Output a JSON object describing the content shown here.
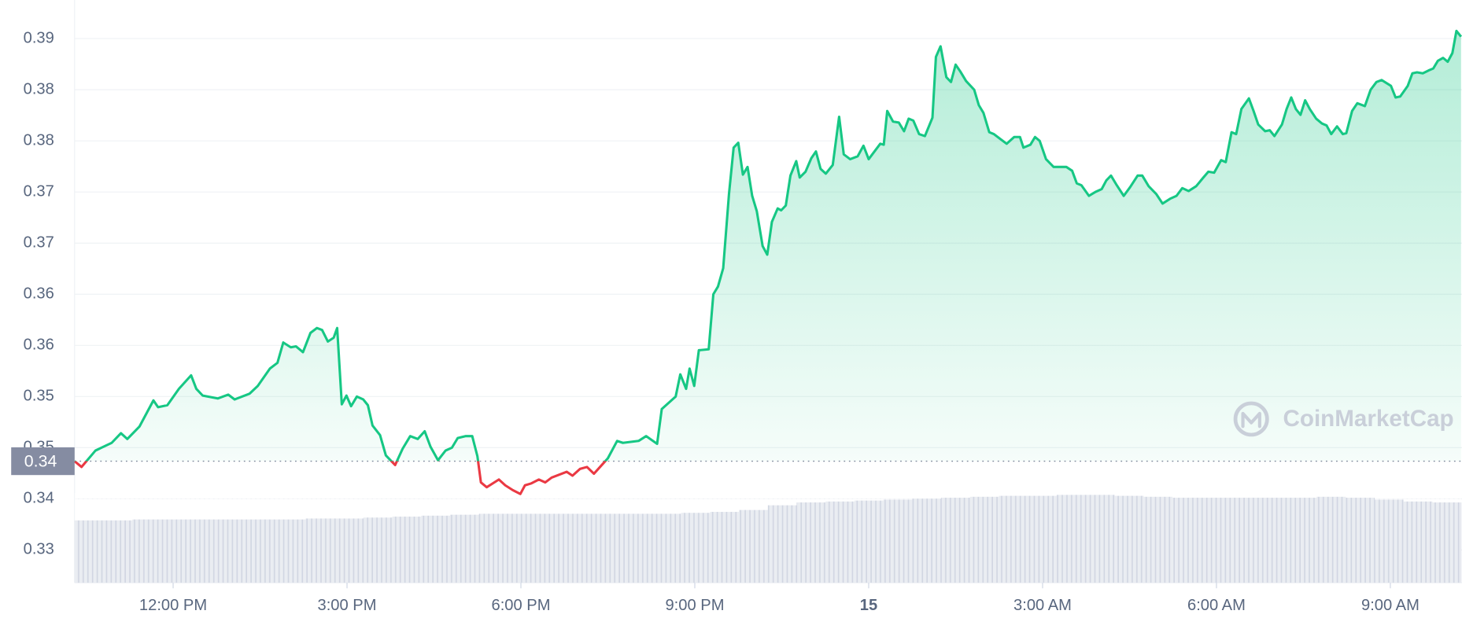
{
  "chart_data": {
    "type": "line",
    "color": "#16c784",
    "down_color": "#ea3943",
    "reference": {
      "value": 0.3437,
      "label": "0.34"
    },
    "watermark": "CoinMarketCap",
    "grid": true,
    "xlim": [
      10.3,
      34.22
    ],
    "xticks": [
      {
        "value": 12,
        "label": "12:00 PM"
      },
      {
        "value": 15,
        "label": "3:00 PM"
      },
      {
        "value": 18,
        "label": "6:00 PM"
      },
      {
        "value": 21,
        "label": "9:00 PM"
      },
      {
        "value": 24,
        "label": "15",
        "bold": true
      },
      {
        "value": 27,
        "label": "3:00 AM"
      },
      {
        "value": 30,
        "label": "6:00 AM"
      },
      {
        "value": 33,
        "label": "9:00 AM"
      }
    ],
    "ylim": [
      0.3311,
      0.3915
    ],
    "yticks": [
      {
        "value": 0.3875,
        "label": "0.39"
      },
      {
        "value": 0.3822,
        "label": "0.38"
      },
      {
        "value": 0.3769,
        "label": "0.38"
      },
      {
        "value": 0.3716,
        "label": "0.37"
      },
      {
        "value": 0.3663,
        "label": "0.37"
      },
      {
        "value": 0.361,
        "label": "0.36"
      },
      {
        "value": 0.3557,
        "label": "0.36"
      },
      {
        "value": 0.3504,
        "label": "0.35"
      },
      {
        "value": 0.3451,
        "label": "0.35"
      },
      {
        "value": 0.3398,
        "label": "0.34"
      },
      {
        "value": 0.3345,
        "label": "0.33"
      }
    ],
    "x": [
      10.3,
      10.42,
      10.66,
      10.94,
      11.1,
      11.21,
      11.42,
      11.66,
      11.74,
      11.9,
      12.1,
      12.31,
      12.4,
      12.51,
      12.77,
      12.95,
      13.06,
      13.32,
      13.46,
      13.67,
      13.8,
      13.9,
      14.03,
      14.12,
      14.24,
      14.37,
      14.48,
      14.57,
      14.67,
      14.77,
      14.83,
      14.91,
      14.99,
      15.07,
      15.17,
      15.28,
      15.36,
      15.44,
      15.57,
      15.67,
      15.83,
      15.96,
      16.09,
      16.22,
      16.34,
      16.44,
      16.57,
      16.7,
      16.81,
      16.91,
      17.05,
      17.16,
      17.25,
      17.31,
      17.41,
      17.62,
      17.73,
      17.86,
      17.99,
      18.07,
      18.18,
      18.31,
      18.42,
      18.53,
      18.79,
      18.89,
      19.02,
      19.14,
      19.26,
      19.38,
      19.5,
      19.66,
      19.76,
      20.03,
      20.16,
      20.35,
      20.43,
      20.67,
      20.75,
      20.85,
      20.91,
      20.99,
      21.07,
      21.24,
      21.32,
      21.4,
      21.49,
      21.59,
      21.67,
      21.75,
      21.83,
      21.91,
      21.99,
      22.07,
      22.17,
      22.25,
      22.33,
      22.43,
      22.49,
      22.57,
      22.65,
      22.75,
      22.81,
      22.91,
      23.01,
      23.09,
      23.17,
      23.26,
      23.38,
      23.49,
      23.57,
      23.68,
      23.81,
      23.91,
      24.0,
      24.2,
      24.26,
      24.32,
      24.42,
      24.52,
      24.61,
      24.69,
      24.77,
      24.87,
      24.97,
      25.1,
      25.16,
      25.24,
      25.34,
      25.42,
      25.5,
      25.58,
      25.68,
      25.82,
      25.9,
      25.98,
      26.08,
      26.16,
      26.38,
      26.51,
      26.61,
      26.67,
      26.79,
      26.87,
      26.95,
      27.06,
      27.19,
      27.41,
      27.51,
      27.59,
      27.67,
      27.8,
      27.91,
      28.02,
      28.1,
      28.18,
      28.28,
      28.4,
      28.51,
      28.64,
      28.72,
      28.83,
      28.96,
      29.07,
      29.2,
      29.31,
      29.41,
      29.52,
      29.65,
      29.76,
      29.86,
      29.96,
      30.08,
      30.16,
      30.26,
      30.34,
      30.43,
      30.56,
      30.64,
      30.72,
      30.84,
      30.92,
      31.0,
      31.13,
      31.21,
      31.29,
      31.37,
      31.45,
      31.53,
      31.61,
      31.72,
      31.82,
      31.9,
      31.98,
      32.08,
      32.18,
      32.24,
      32.34,
      32.43,
      32.56,
      32.66,
      32.76,
      32.85,
      33.01,
      33.09,
      33.17,
      33.3,
      33.38,
      33.46,
      33.56,
      33.66,
      33.74,
      33.82,
      33.91,
      33.99,
      34.07,
      34.14,
      34.22
    ],
    "values": [
      0.3437,
      0.3431,
      0.3448,
      0.3456,
      0.3466,
      0.346,
      0.3473,
      0.35,
      0.3493,
      0.3495,
      0.3512,
      0.3526,
      0.3512,
      0.3505,
      0.3502,
      0.3506,
      0.3501,
      0.3507,
      0.3515,
      0.3533,
      0.3539,
      0.356,
      0.3555,
      0.3556,
      0.355,
      0.357,
      0.3575,
      0.3573,
      0.3561,
      0.3565,
      0.3575,
      0.3496,
      0.3505,
      0.3494,
      0.3504,
      0.3501,
      0.3495,
      0.3474,
      0.3464,
      0.3443,
      0.3433,
      0.345,
      0.3463,
      0.346,
      0.3468,
      0.3452,
      0.3438,
      0.3448,
      0.3451,
      0.3461,
      0.3463,
      0.3463,
      0.3442,
      0.3415,
      0.341,
      0.3418,
      0.3412,
      0.3407,
      0.3403,
      0.3412,
      0.3414,
      0.3418,
      0.3415,
      0.342,
      0.3426,
      0.3422,
      0.3429,
      0.3431,
      0.3424,
      0.3432,
      0.344,
      0.3458,
      0.3456,
      0.3458,
      0.3463,
      0.3455,
      0.3491,
      0.3504,
      0.3527,
      0.3512,
      0.3533,
      0.3515,
      0.3552,
      0.3553,
      0.361,
      0.3618,
      0.3637,
      0.3714,
      0.3762,
      0.3767,
      0.3734,
      0.3742,
      0.3712,
      0.3696,
      0.366,
      0.3651,
      0.3685,
      0.3699,
      0.3697,
      0.3702,
      0.3733,
      0.3748,
      0.3731,
      0.3737,
      0.3751,
      0.3758,
      0.374,
      0.3735,
      0.3744,
      0.3794,
      0.3755,
      0.375,
      0.3753,
      0.3764,
      0.375,
      0.3766,
      0.3765,
      0.38,
      0.3789,
      0.3788,
      0.3779,
      0.3792,
      0.379,
      0.3776,
      0.3774,
      0.3793,
      0.3856,
      0.3867,
      0.3835,
      0.383,
      0.3848,
      0.3841,
      0.3831,
      0.3822,
      0.3806,
      0.3798,
      0.3778,
      0.3776,
      0.3766,
      0.3773,
      0.3773,
      0.3762,
      0.3765,
      0.3773,
      0.3769,
      0.375,
      0.3742,
      0.3742,
      0.3738,
      0.3725,
      0.3723,
      0.3712,
      0.3716,
      0.3719,
      0.3728,
      0.3733,
      0.3723,
      0.3712,
      0.3721,
      0.3733,
      0.3733,
      0.3722,
      0.3714,
      0.3704,
      0.3709,
      0.3712,
      0.372,
      0.3717,
      0.3722,
      0.373,
      0.3737,
      0.3736,
      0.3749,
      0.3747,
      0.3778,
      0.3776,
      0.3802,
      0.3813,
      0.38,
      0.3786,
      0.3779,
      0.378,
      0.3774,
      0.3786,
      0.3802,
      0.3814,
      0.3802,
      0.3796,
      0.3811,
      0.3802,
      0.3792,
      0.3787,
      0.3785,
      0.3776,
      0.3784,
      0.3776,
      0.3777,
      0.38,
      0.3808,
      0.3805,
      0.3822,
      0.383,
      0.3832,
      0.3826,
      0.3814,
      0.3815,
      0.3826,
      0.3839,
      0.384,
      0.3839,
      0.3842,
      0.3844,
      0.3852,
      0.3855,
      0.3851,
      0.386,
      0.3883,
      0.3877
    ],
    "volume": {
      "color": "#d1d6e2",
      "values": [
        66,
        66,
        67,
        67,
        67,
        67,
        67,
        67,
        68,
        68,
        69,
        70,
        71,
        72,
        73,
        73,
        73,
        73,
        73,
        73,
        73,
        74,
        75,
        77,
        82,
        85,
        86,
        87,
        88,
        89,
        90,
        91,
        92,
        92,
        93,
        93,
        92,
        91,
        90,
        90,
        90,
        90,
        90,
        91,
        90,
        88,
        86,
        85
      ]
    }
  }
}
